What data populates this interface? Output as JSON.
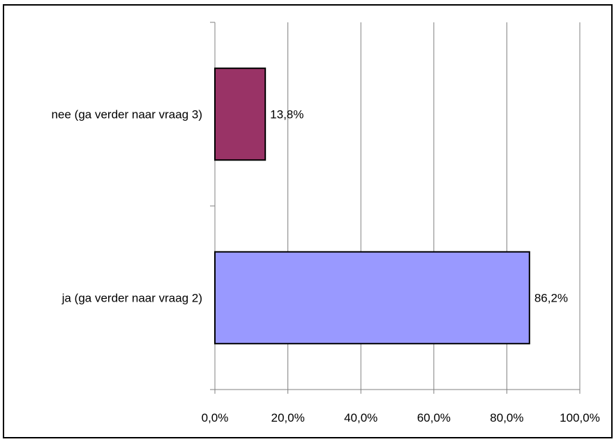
{
  "chart_data": {
    "type": "bar",
    "orientation": "horizontal",
    "title": "",
    "xlabel": "",
    "ylabel": "",
    "categories": [
      "nee (ga verder naar vraag 3)",
      "ja (ga verder naar vraag 2)"
    ],
    "values": [
      13.8,
      86.2
    ],
    "value_labels": [
      "13,8%",
      "86,2%"
    ],
    "colors": [
      "#993366",
      "#9999ff"
    ],
    "xlim": [
      0,
      100
    ],
    "x_ticks": [
      0,
      20,
      40,
      60,
      80,
      100
    ],
    "x_tick_labels": [
      "0,0%",
      "20,0%",
      "40,0%",
      "60,0%",
      "80,0%",
      "100,0%"
    ],
    "grid": "vertical",
    "legend": "none"
  }
}
